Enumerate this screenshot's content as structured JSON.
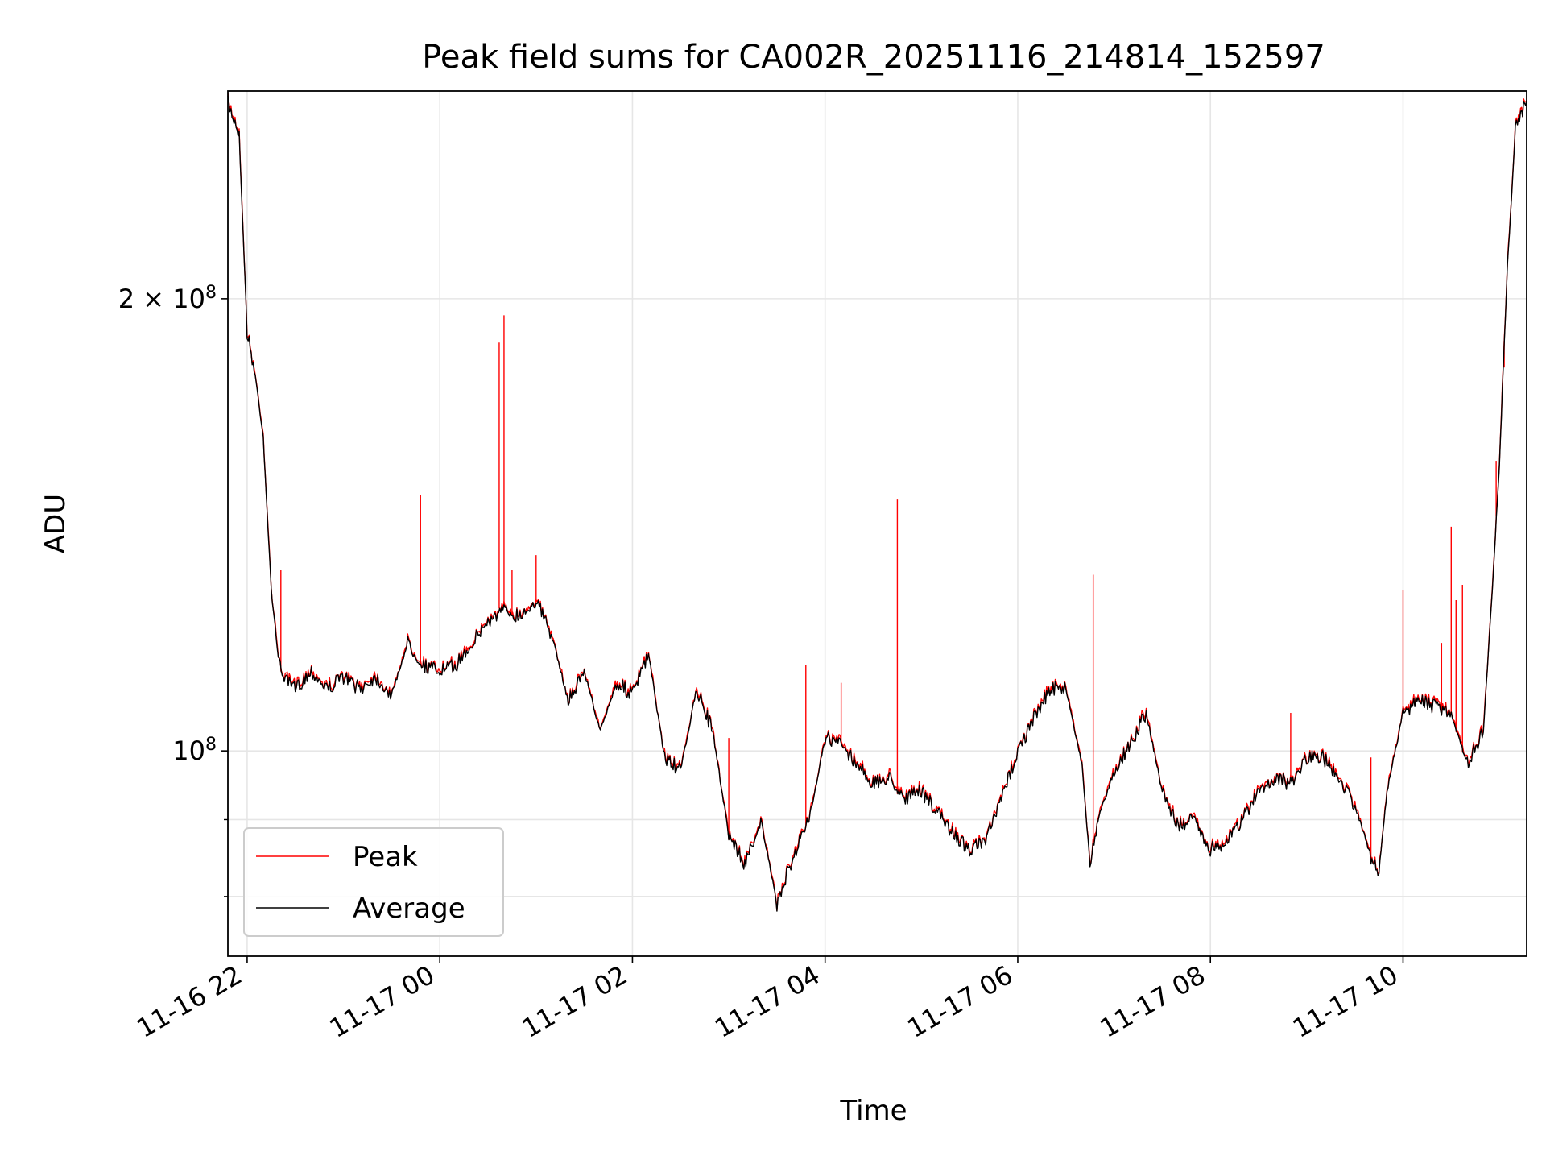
{
  "chart_data": {
    "type": "line",
    "title": "Peak field sums for CA002R_20251116_214814_152597",
    "xlabel": "Time",
    "ylabel": "ADU",
    "y_scale": "log",
    "ylim": [
      73000000,
      275000000
    ],
    "xlim": [
      "2025-11-16 21:48",
      "2025-11-17 11:17"
    ],
    "grid": true,
    "legend_position": "lower-left",
    "x_ticks": [
      {
        "time": "2025-11-16 22:00",
        "label": "11-16 22"
      },
      {
        "time": "2025-11-17 00:00",
        "label": "11-17 00"
      },
      {
        "time": "2025-11-17 02:00",
        "label": "11-17 02"
      },
      {
        "time": "2025-11-17 04:00",
        "label": "11-17 04"
      },
      {
        "time": "2025-11-17 06:00",
        "label": "11-17 06"
      },
      {
        "time": "2025-11-17 08:00",
        "label": "11-17 08"
      },
      {
        "time": "2025-11-17 10:00",
        "label": "11-17 10"
      }
    ],
    "y_ticks": [
      {
        "value": 100000000,
        "label": "10^8"
      },
      {
        "value": 200000000,
        "label": "2 × 10^8"
      }
    ],
    "average_series": {
      "name": "Average",
      "color": "#000000",
      "points": [
        [
          "2025-11-16 21:48",
          270000000
        ],
        [
          "2025-11-16 21:55",
          258000000
        ],
        [
          "2025-11-16 22:00",
          190000000
        ],
        [
          "2025-11-16 22:05",
          178000000
        ],
        [
          "2025-11-16 22:10",
          162000000
        ],
        [
          "2025-11-16 22:15",
          128000000
        ],
        [
          "2025-11-16 22:20",
          114000000
        ],
        [
          "2025-11-16 22:25",
          111000000
        ],
        [
          "2025-11-16 22:30",
          110000000
        ],
        [
          "2025-11-16 22:40",
          113000000
        ],
        [
          "2025-11-16 22:50",
          110000000
        ],
        [
          "2025-11-16 23:00",
          112000000
        ],
        [
          "2025-11-16 23:10",
          110000000
        ],
        [
          "2025-11-16 23:20",
          112000000
        ],
        [
          "2025-11-16 23:30",
          109000000
        ],
        [
          "2025-11-16 23:40",
          118000000
        ],
        [
          "2025-11-16 23:50",
          114000000
        ],
        [
          "2025-11-17 00:00",
          113000000
        ],
        [
          "2025-11-17 00:10",
          114000000
        ],
        [
          "2025-11-17 00:20",
          118000000
        ],
        [
          "2025-11-17 00:30",
          122000000
        ],
        [
          "2025-11-17 00:40",
          124000000
        ],
        [
          "2025-11-17 00:50",
          123000000
        ],
        [
          "2025-11-17 01:00",
          126000000
        ],
        [
          "2025-11-17 01:10",
          119000000
        ],
        [
          "2025-11-17 01:20",
          108000000
        ],
        [
          "2025-11-17 01:30",
          113000000
        ],
        [
          "2025-11-17 01:40",
          103000000
        ],
        [
          "2025-11-17 01:50",
          111000000
        ],
        [
          "2025-11-17 02:00",
          109000000
        ],
        [
          "2025-11-17 02:10",
          116000000
        ],
        [
          "2025-11-17 02:20",
          99000000
        ],
        [
          "2025-11-17 02:30",
          97000000
        ],
        [
          "2025-11-17 02:40",
          110000000
        ],
        [
          "2025-11-17 02:50",
          103000000
        ],
        [
          "2025-11-17 03:00",
          88000000
        ],
        [
          "2025-11-17 03:10",
          84000000
        ],
        [
          "2025-11-17 03:20",
          90000000
        ],
        [
          "2025-11-17 03:30",
          79000000
        ],
        [
          "2025-11-17 03:40",
          85000000
        ],
        [
          "2025-11-17 03:50",
          90000000
        ],
        [
          "2025-11-17 04:00",
          102000000
        ],
        [
          "2025-11-17 04:10",
          101000000
        ],
        [
          "2025-11-17 04:20",
          98000000
        ],
        [
          "2025-11-17 04:30",
          95000000
        ],
        [
          "2025-11-17 04:40",
          96000000
        ],
        [
          "2025-11-17 04:50",
          93000000
        ],
        [
          "2025-11-17 05:00",
          94000000
        ],
        [
          "2025-11-17 05:10",
          91000000
        ],
        [
          "2025-11-17 05:20",
          88000000
        ],
        [
          "2025-11-17 05:30",
          86000000
        ],
        [
          "2025-11-17 05:40",
          87000000
        ],
        [
          "2025-11-17 05:50",
          93000000
        ],
        [
          "2025-11-17 06:00",
          100000000
        ],
        [
          "2025-11-17 06:10",
          105000000
        ],
        [
          "2025-11-17 06:20",
          110000000
        ],
        [
          "2025-11-17 06:30",
          110000000
        ],
        [
          "2025-11-17 06:40",
          98000000
        ],
        [
          "2025-11-17 06:45",
          84000000
        ],
        [
          "2025-11-17 06:50",
          90000000
        ],
        [
          "2025-11-17 07:00",
          97000000
        ],
        [
          "2025-11-17 07:10",
          101000000
        ],
        [
          "2025-11-17 07:20",
          106000000
        ],
        [
          "2025-11-17 07:30",
          94000000
        ],
        [
          "2025-11-17 07:40",
          89000000
        ],
        [
          "2025-11-17 07:50",
          90000000
        ],
        [
          "2025-11-17 08:00",
          86000000
        ],
        [
          "2025-11-17 08:10",
          87000000
        ],
        [
          "2025-11-17 08:20",
          90000000
        ],
        [
          "2025-11-17 08:30",
          94000000
        ],
        [
          "2025-11-17 08:40",
          96000000
        ],
        [
          "2025-11-17 08:50",
          95000000
        ],
        [
          "2025-11-17 09:00",
          99000000
        ],
        [
          "2025-11-17 09:10",
          99000000
        ],
        [
          "2025-11-17 09:20",
          96000000
        ],
        [
          "2025-11-17 09:30",
          92000000
        ],
        [
          "2025-11-17 09:40",
          85000000
        ],
        [
          "2025-11-17 09:45",
          83000000
        ],
        [
          "2025-11-17 09:50",
          94000000
        ],
        [
          "2025-11-17 10:00",
          106000000
        ],
        [
          "2025-11-17 10:10",
          108000000
        ],
        [
          "2025-11-17 10:20",
          107000000
        ],
        [
          "2025-11-17 10:30",
          106000000
        ],
        [
          "2025-11-17 10:40",
          98000000
        ],
        [
          "2025-11-17 10:50",
          103000000
        ],
        [
          "2025-11-17 10:55",
          125000000
        ],
        [
          "2025-11-17 11:00",
          155000000
        ],
        [
          "2025-11-17 11:05",
          210000000
        ],
        [
          "2025-11-17 11:10",
          260000000
        ],
        [
          "2025-11-17 11:17",
          271000000
        ]
      ]
    },
    "peak_series": {
      "name": "Peak",
      "color": "#ff0000",
      "spikes": [
        [
          "2025-11-16 22:21",
          132000000
        ],
        [
          "2025-11-16 23:48",
          148000000
        ],
        [
          "2025-11-17 00:37",
          187000000
        ],
        [
          "2025-11-17 00:40",
          195000000
        ],
        [
          "2025-11-17 00:45",
          132000000
        ],
        [
          "2025-11-17 01:00",
          135000000
        ],
        [
          "2025-11-17 03:00",
          102000000
        ],
        [
          "2025-11-17 03:48",
          114000000
        ],
        [
          "2025-11-17 04:10",
          111000000
        ],
        [
          "2025-11-17 04:45",
          147000000
        ],
        [
          "2025-11-17 06:47",
          131000000
        ],
        [
          "2025-11-17 08:50",
          106000000
        ],
        [
          "2025-11-17 09:40",
          99000000
        ],
        [
          "2025-11-17 10:00",
          128000000
        ],
        [
          "2025-11-17 10:24",
          118000000
        ],
        [
          "2025-11-17 10:30",
          141000000
        ],
        [
          "2025-11-17 10:33",
          126000000
        ],
        [
          "2025-11-17 10:37",
          129000000
        ],
        [
          "2025-11-17 10:58",
          156000000
        ],
        [
          "2025-11-17 11:03",
          180000000
        ]
      ]
    }
  }
}
